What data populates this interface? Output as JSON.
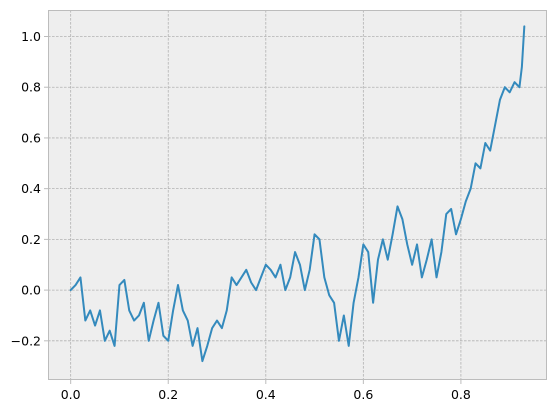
{
  "chart_data": {
    "type": "line",
    "title": "",
    "xlabel": "",
    "ylabel": "",
    "xlim": [
      -0.0465,
      0.9765
    ],
    "ylim": [
      -0.3545,
      1.1045
    ],
    "x_ticks": [
      0.0,
      0.2,
      0.4,
      0.6,
      0.8
    ],
    "x_tick_labels": [
      "0.0",
      "0.2",
      "0.4",
      "0.6",
      "0.8"
    ],
    "y_ticks": [
      -0.2,
      0.0,
      0.2,
      0.4,
      0.6,
      0.8,
      1.0
    ],
    "y_tick_labels": [
      "−0.2",
      "0.0",
      "0.2",
      "0.4",
      "0.6",
      "0.8",
      "1.0"
    ],
    "grid": true,
    "legend": "none",
    "colors": {
      "plot_background": "#eeeeee",
      "grid": "#b2b2b2",
      "frame": "#bcbcbc",
      "series": "#348abd"
    },
    "series": [
      {
        "color": "#348abd",
        "x": [
          0.0,
          0.01,
          0.02,
          0.03,
          0.04,
          0.05,
          0.06,
          0.07,
          0.08,
          0.09,
          0.1,
          0.11,
          0.12,
          0.13,
          0.14,
          0.15,
          0.16,
          0.17,
          0.18,
          0.19,
          0.2,
          0.21,
          0.22,
          0.23,
          0.24,
          0.25,
          0.26,
          0.27,
          0.28,
          0.29,
          0.3,
          0.31,
          0.32,
          0.33,
          0.34,
          0.35,
          0.36,
          0.37,
          0.38,
          0.39,
          0.4,
          0.41,
          0.42,
          0.43,
          0.44,
          0.45,
          0.46,
          0.47,
          0.48,
          0.49,
          0.5,
          0.51,
          0.52,
          0.53,
          0.54,
          0.55,
          0.56,
          0.57,
          0.58,
          0.59,
          0.6,
          0.61,
          0.62,
          0.63,
          0.64,
          0.65,
          0.66,
          0.67,
          0.68,
          0.69,
          0.7,
          0.71,
          0.72,
          0.73,
          0.74,
          0.75,
          0.76,
          0.77,
          0.78,
          0.79,
          0.8,
          0.81,
          0.82,
          0.83,
          0.84,
          0.85,
          0.86,
          0.87,
          0.88,
          0.89,
          0.9,
          0.91,
          0.92,
          0.925,
          0.93
        ],
        "y": [
          0.0,
          0.02,
          0.05,
          -0.12,
          -0.08,
          -0.14,
          -0.08,
          -0.2,
          -0.16,
          -0.22,
          0.02,
          0.04,
          -0.08,
          -0.12,
          -0.1,
          -0.05,
          -0.2,
          -0.12,
          -0.05,
          -0.18,
          -0.2,
          -0.08,
          0.02,
          -0.08,
          -0.12,
          -0.22,
          -0.15,
          -0.28,
          -0.22,
          -0.15,
          -0.12,
          -0.15,
          -0.08,
          0.05,
          0.02,
          0.05,
          0.08,
          0.03,
          0.0,
          0.05,
          0.1,
          0.08,
          0.05,
          0.1,
          0.0,
          0.05,
          0.15,
          0.1,
          0.0,
          0.08,
          0.22,
          0.2,
          0.05,
          -0.02,
          -0.05,
          -0.2,
          -0.1,
          -0.22,
          -0.05,
          0.05,
          0.18,
          0.15,
          -0.05,
          0.12,
          0.2,
          0.12,
          0.22,
          0.33,
          0.28,
          0.18,
          0.1,
          0.18,
          0.05,
          0.12,
          0.2,
          0.05,
          0.15,
          0.3,
          0.32,
          0.22,
          0.28,
          0.35,
          0.4,
          0.5,
          0.48,
          0.58,
          0.55,
          0.65,
          0.75,
          0.8,
          0.78,
          0.82,
          0.8,
          0.88,
          1.04
        ]
      }
    ]
  }
}
